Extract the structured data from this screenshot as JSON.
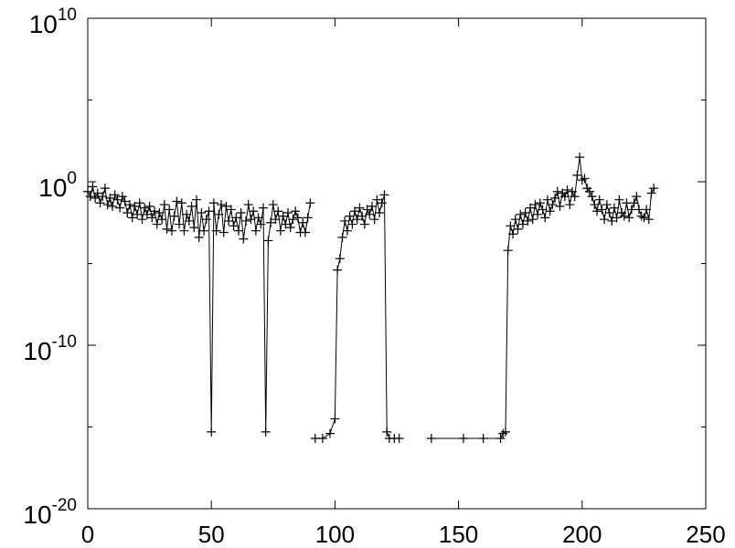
{
  "chart_data": {
    "type": "line",
    "title": "",
    "xlabel": "",
    "ylabel": "",
    "xlim": [
      0,
      250
    ],
    "ylim_log10": [
      -20,
      10
    ],
    "y_scale": "log",
    "grid": false,
    "legend": "none",
    "x_ticks": [
      {
        "value": 0,
        "label": "0"
      },
      {
        "value": 50,
        "label": "50"
      },
      {
        "value": 100,
        "label": "100"
      },
      {
        "value": 150,
        "label": "150"
      },
      {
        "value": 200,
        "label": "200"
      },
      {
        "value": 250,
        "label": "250"
      }
    ],
    "y_ticks": [
      {
        "exp": 10,
        "base": "10",
        "sup": "10"
      },
      {
        "exp": 0,
        "base": "10",
        "sup": "0"
      },
      {
        "exp": -10,
        "base": "10",
        "sup": "-10"
      },
      {
        "exp": -20,
        "base": "10",
        "sup": "-20"
      }
    ],
    "minor_y_ticks_exp": [
      5,
      -5,
      -15
    ],
    "colors": {
      "line": "#000000",
      "marker": "#000000",
      "axis": "#000000"
    },
    "series": [
      {
        "marker": "plus",
        "segments": [
          {
            "x": [
              0,
              1,
              2,
              3,
              4,
              5,
              6,
              7,
              8,
              9,
              10,
              11,
              12,
              13,
              14,
              15,
              16,
              17,
              18,
              19,
              20,
              21,
              22,
              23,
              24,
              25,
              26,
              27,
              28,
              29,
              30,
              31,
              32,
              33,
              34,
              35,
              36,
              37,
              38,
              39,
              40,
              41,
              42,
              43,
              44,
              45,
              46,
              47,
              48,
              49,
              50,
              51,
              52,
              53,
              54,
              55,
              56,
              57,
              58,
              59,
              60,
              61,
              62,
              63,
              64,
              65,
              66,
              67,
              68,
              69,
              70,
              71,
              72,
              73,
              74,
              75,
              76,
              77,
              78,
              79,
              80,
              81,
              82,
              83,
              84,
              85,
              86,
              87,
              88,
              89,
              90
            ],
            "log10y": [
              -0.6,
              -0.9,
              -0.3,
              -1.0,
              -0.7,
              -1.3,
              -0.9,
              -0.4,
              -1.4,
              -1.0,
              -1.5,
              -0.8,
              -1.1,
              -1.6,
              -0.9,
              -1.2,
              -1.9,
              -1.4,
              -2.2,
              -1.5,
              -2.0,
              -1.3,
              -2.3,
              -1.6,
              -2.0,
              -1.5,
              -2.2,
              -1.8,
              -2.6,
              -1.9,
              -2.3,
              -1.4,
              -2.9,
              -1.7,
              -3.0,
              -2.1,
              -1.2,
              -2.6,
              -1.3,
              -3.0,
              -2.0,
              -2.4,
              -1.5,
              -2.8,
              -1.1,
              -3.4,
              -1.9,
              -3.0,
              -2.3,
              -1.8,
              -15.3,
              -1.3,
              -3.0,
              -2.0,
              -1.4,
              -3.1,
              -1.5,
              -2.4,
              -1.7,
              -2.7,
              -2.2,
              -3.0,
              -1.9,
              -3.5,
              -2.4,
              -1.4,
              -2.3,
              -1.8,
              -3.0,
              -2.2,
              -2.6,
              -1.6,
              -15.3,
              -3.6,
              -2.5,
              -1.4,
              -2.3,
              -1.8,
              -3.0,
              -2.1,
              -2.6,
              -1.9,
              -2.8,
              -2.3,
              -1.8,
              -2.2,
              -3.1,
              -2.5,
              -3.1,
              -2.2,
              -1.3
            ]
          },
          {
            "x": [
              92,
              95,
              98,
              100,
              101,
              102,
              103,
              104,
              105,
              106,
              107,
              108,
              109,
              110,
              111,
              112,
              113,
              114,
              115,
              116,
              117,
              118,
              119,
              120,
              121,
              122,
              124,
              126
            ],
            "log10y": [
              -15.7,
              -15.7,
              -15.4,
              -14.5,
              -5.4,
              -4.7,
              -3.4,
              -2.4,
              -3.0,
              -2.1,
              -2.6,
              -1.8,
              -2.3,
              -1.6,
              -2.1,
              -2.6,
              -1.7,
              -2.0,
              -1.5,
              -2.3,
              -1.1,
              -1.9,
              -1.3,
              -0.8,
              -15.3,
              -15.7,
              -15.7,
              -15.7
            ]
          },
          {
            "x": [
              139,
              152,
              160,
              167,
              168,
              169,
              170,
              171,
              172,
              173,
              174,
              175,
              176,
              177,
              178,
              179,
              180,
              181,
              182,
              183,
              184,
              185,
              186,
              187,
              188,
              189,
              190,
              191,
              192,
              193,
              194,
              195,
              196,
              197,
              198,
              199,
              200,
              201,
              202,
              203,
              204,
              205,
              206,
              207,
              208,
              209,
              210,
              211,
              212,
              213,
              214,
              215,
              216,
              217,
              218,
              219,
              220,
              221,
              222,
              223,
              224,
              225,
              226,
              227,
              228,
              229
            ],
            "log10y": [
              -15.7,
              -15.7,
              -15.7,
              -15.7,
              -15.4,
              -15.3,
              -4.2,
              -2.7,
              -3.2,
              -2.3,
              -2.9,
              -2.0,
              -2.6,
              -1.9,
              -2.4,
              -1.6,
              -2.3,
              -1.4,
              -2.0,
              -1.3,
              -1.7,
              -2.2,
              -1.1,
              -1.8,
              -1.4,
              -1.0,
              -0.6,
              -1.5,
              -0.7,
              -0.9,
              -0.5,
              -1.4,
              -0.6,
              -0.9,
              0.4,
              1.5,
              0.1,
              0.2,
              -0.4,
              -0.6,
              -0.9,
              -1.4,
              -1.8,
              -1.1,
              -1.7,
              -2.3,
              -1.4,
              -1.9,
              -2.4,
              -1.6,
              -2.2,
              -1.1,
              -1.9,
              -2.1,
              -1.3,
              -2.2,
              -1.7,
              -1.3,
              -0.9,
              -1.7,
              -2.1,
              -2.2,
              -1.7,
              -2.3,
              -0.7,
              -0.4
            ]
          }
        ]
      }
    ]
  }
}
